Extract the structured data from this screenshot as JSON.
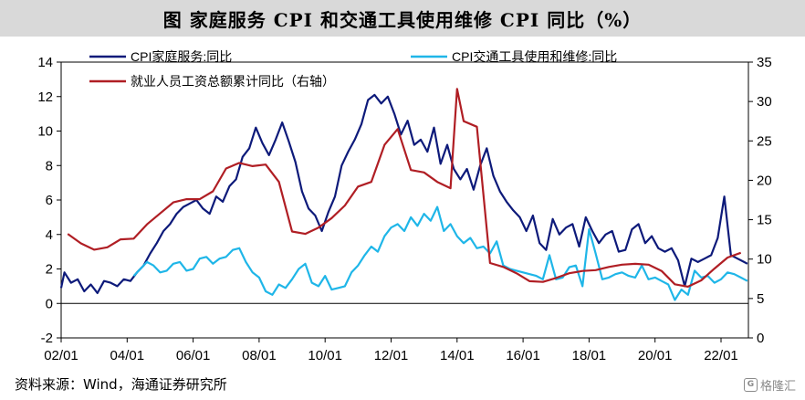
{
  "header": {
    "title": "图  家庭服务 CPI 和交通工具使用维修 CPI 同比（%）"
  },
  "footer": {
    "source": "资料来源：Wind，海通证券研究所",
    "watermark": "格隆汇"
  },
  "chart_data": {
    "type": "line",
    "title": "图  家庭服务 CPI 和交通工具使用维修 CPI 同比（%）",
    "x_ticks": [
      "02/01",
      "04/01",
      "06/01",
      "08/01",
      "10/01",
      "12/01",
      "14/01",
      "16/01",
      "18/01",
      "20/01",
      "22/01"
    ],
    "x_range": [
      2002.0,
      2022.83
    ],
    "y_left": {
      "min": -2,
      "max": 14,
      "ticks": [
        -2,
        0,
        2,
        4,
        6,
        8,
        10,
        12,
        14
      ]
    },
    "y_right": {
      "min": 0,
      "max": 35,
      "ticks": [
        0,
        5,
        10,
        15,
        20,
        25,
        30,
        35
      ]
    },
    "grid": false,
    "legend_position": "top-left",
    "colors": {
      "s1": "#0d1a7a",
      "s2": "#1fb6e8",
      "s3": "#b01e24"
    },
    "series": [
      {
        "name": "CPI家庭服务:同比",
        "axis": "left",
        "x": [
          2002.0,
          2002.1,
          2002.3,
          2002.5,
          2002.7,
          2002.9,
          2003.1,
          2003.3,
          2003.5,
          2003.7,
          2003.9,
          2004.1,
          2004.3,
          2004.5,
          2004.7,
          2004.9,
          2005.1,
          2005.3,
          2005.5,
          2005.7,
          2005.9,
          2006.1,
          2006.3,
          2006.5,
          2006.7,
          2006.9,
          2007.1,
          2007.3,
          2007.5,
          2007.7,
          2007.9,
          2008.1,
          2008.3,
          2008.5,
          2008.7,
          2008.9,
          2009.1,
          2009.3,
          2009.5,
          2009.7,
          2009.9,
          2010.1,
          2010.3,
          2010.5,
          2010.7,
          2010.9,
          2011.1,
          2011.3,
          2011.5,
          2011.7,
          2011.9,
          2012.1,
          2012.3,
          2012.5,
          2012.7,
          2012.9,
          2013.1,
          2013.3,
          2013.5,
          2013.7,
          2013.9,
          2014.1,
          2014.3,
          2014.5,
          2014.7,
          2014.9,
          2015.1,
          2015.3,
          2015.5,
          2015.7,
          2015.9,
          2016.1,
          2016.3,
          2016.5,
          2016.7,
          2016.9,
          2017.1,
          2017.3,
          2017.5,
          2017.7,
          2017.9,
          2018.1,
          2018.3,
          2018.5,
          2018.7,
          2018.9,
          2019.1,
          2019.3,
          2019.5,
          2019.7,
          2019.9,
          2020.1,
          2020.3,
          2020.5,
          2020.7,
          2020.9,
          2021.1,
          2021.3,
          2021.5,
          2021.7,
          2021.9,
          2022.1,
          2022.3,
          2022.5,
          2022.7,
          2022.8
        ],
        "values": [
          0.9,
          1.8,
          1.2,
          1.4,
          0.7,
          1.1,
          0.6,
          1.3,
          1.2,
          1.0,
          1.4,
          1.3,
          1.8,
          2.2,
          2.9,
          3.5,
          4.2,
          4.6,
          5.2,
          5.6,
          5.8,
          6.0,
          5.5,
          5.2,
          6.2,
          5.9,
          6.8,
          7.2,
          8.5,
          9.0,
          10.2,
          9.3,
          8.6,
          9.5,
          10.5,
          9.4,
          8.2,
          6.5,
          5.5,
          5.1,
          4.2,
          5.3,
          6.2,
          8.0,
          8.8,
          9.5,
          10.4,
          11.8,
          12.1,
          11.6,
          12.0,
          11.0,
          9.8,
          10.6,
          9.2,
          9.5,
          8.8,
          10.2,
          8.1,
          9.2,
          7.8,
          7.2,
          7.8,
          6.6,
          8.0,
          9.0,
          7.4,
          6.5,
          5.9,
          5.4,
          5.0,
          4.2,
          5.1,
          3.5,
          3.1,
          4.9,
          4.0,
          4.4,
          4.6,
          3.3,
          5.0,
          4.2,
          3.5,
          4.0,
          4.2,
          3.0,
          3.1,
          4.3,
          4.6,
          3.5,
          3.9,
          3.2,
          3.0,
          3.2,
          2.5,
          1.0,
          2.6,
          2.4,
          2.6,
          2.8,
          3.8,
          6.2,
          2.8,
          2.6,
          2.4,
          2.3
        ]
      },
      {
        "name": "CPI交通工具使用和维修:同比",
        "axis": "left",
        "x": [
          2004.2,
          2004.4,
          2004.6,
          2004.8,
          2005.0,
          2005.2,
          2005.4,
          2005.6,
          2005.8,
          2006.0,
          2006.2,
          2006.4,
          2006.6,
          2006.8,
          2007.0,
          2007.2,
          2007.4,
          2007.6,
          2007.8,
          2008.0,
          2008.2,
          2008.4,
          2008.6,
          2008.8,
          2009.0,
          2009.2,
          2009.4,
          2009.6,
          2009.8,
          2010.0,
          2010.2,
          2010.4,
          2010.6,
          2010.8,
          2011.0,
          2011.2,
          2011.4,
          2011.6,
          2011.8,
          2012.0,
          2012.2,
          2012.4,
          2012.6,
          2012.8,
          2013.0,
          2013.2,
          2013.4,
          2013.6,
          2013.8,
          2014.0,
          2014.2,
          2014.4,
          2014.6,
          2014.8,
          2015.0,
          2015.2,
          2015.4,
          2015.6,
          2015.8,
          2016.0,
          2016.2,
          2016.4,
          2016.6,
          2016.8,
          2017.0,
          2017.2,
          2017.4,
          2017.6,
          2017.8,
          2018.0,
          2018.2,
          2018.4,
          2018.6,
          2018.8,
          2019.0,
          2019.2,
          2019.4,
          2019.6,
          2019.8,
          2020.0,
          2020.2,
          2020.4,
          2020.6,
          2020.8,
          2021.0,
          2021.2,
          2021.4,
          2021.6,
          2021.8,
          2022.0,
          2022.2,
          2022.4,
          2022.6,
          2022.8
        ],
        "values": [
          1.6,
          2.0,
          2.4,
          2.2,
          1.8,
          1.9,
          2.3,
          2.4,
          1.9,
          2.0,
          2.6,
          2.7,
          2.3,
          2.6,
          2.7,
          3.1,
          3.2,
          2.4,
          1.8,
          1.5,
          0.7,
          0.5,
          1.1,
          0.9,
          1.4,
          2.0,
          2.3,
          1.2,
          1.0,
          1.6,
          0.8,
          0.9,
          1.0,
          1.8,
          2.2,
          2.8,
          3.3,
          3.0,
          3.9,
          4.4,
          4.6,
          4.2,
          5.0,
          4.5,
          5.2,
          4.8,
          5.6,
          4.2,
          4.6,
          3.9,
          3.5,
          3.8,
          3.2,
          3.3,
          2.9,
          3.6,
          2.2,
          2.0,
          1.9,
          1.8,
          1.7,
          1.6,
          1.4,
          2.8,
          1.4,
          1.5,
          2.1,
          2.2,
          1.0,
          4.3,
          2.9,
          1.4,
          1.5,
          1.7,
          1.8,
          1.6,
          1.5,
          2.2,
          1.4,
          1.5,
          1.3,
          1.1,
          0.2,
          0.8,
          0.5,
          1.9,
          1.5,
          1.6,
          1.2,
          1.4,
          1.8,
          1.7,
          1.5,
          1.3
        ]
      },
      {
        "name": "就业人员工资总额累计同比（右轴）",
        "axis": "right",
        "x": [
          2002.2,
          2002.6,
          2003.0,
          2003.4,
          2003.8,
          2004.2,
          2004.6,
          2005.0,
          2005.4,
          2005.8,
          2006.2,
          2006.6,
          2007.0,
          2007.4,
          2007.8,
          2008.2,
          2008.6,
          2009.0,
          2009.4,
          2009.8,
          2010.2,
          2010.6,
          2011.0,
          2011.4,
          2011.8,
          2012.2,
          2012.6,
          2013.0,
          2013.4,
          2013.8,
          2014.0,
          2014.2,
          2014.6,
          2015.0,
          2015.4,
          2015.8,
          2016.2,
          2016.6,
          2017.0,
          2017.4,
          2017.8,
          2018.2,
          2018.6,
          2019.0,
          2019.4,
          2019.8,
          2020.2,
          2020.6,
          2021.0,
          2021.4,
          2021.8,
          2022.2,
          2022.6
        ],
        "values": [
          13.2,
          12.0,
          11.2,
          11.5,
          12.5,
          12.6,
          14.4,
          15.8,
          17.2,
          17.6,
          17.6,
          18.6,
          21.5,
          22.2,
          21.8,
          22.0,
          19.8,
          13.5,
          13.2,
          14.0,
          15.2,
          16.8,
          19.2,
          19.8,
          24.5,
          26.5,
          21.3,
          21.0,
          19.8,
          19.0,
          31.6,
          27.5,
          26.8,
          9.5,
          9.0,
          8.2,
          7.2,
          7.1,
          7.6,
          8.2,
          8.5,
          8.6,
          9.0,
          9.3,
          9.4,
          9.3,
          8.5,
          6.8,
          6.5,
          7.3,
          8.8,
          10.2,
          10.8
        ]
      }
    ]
  }
}
